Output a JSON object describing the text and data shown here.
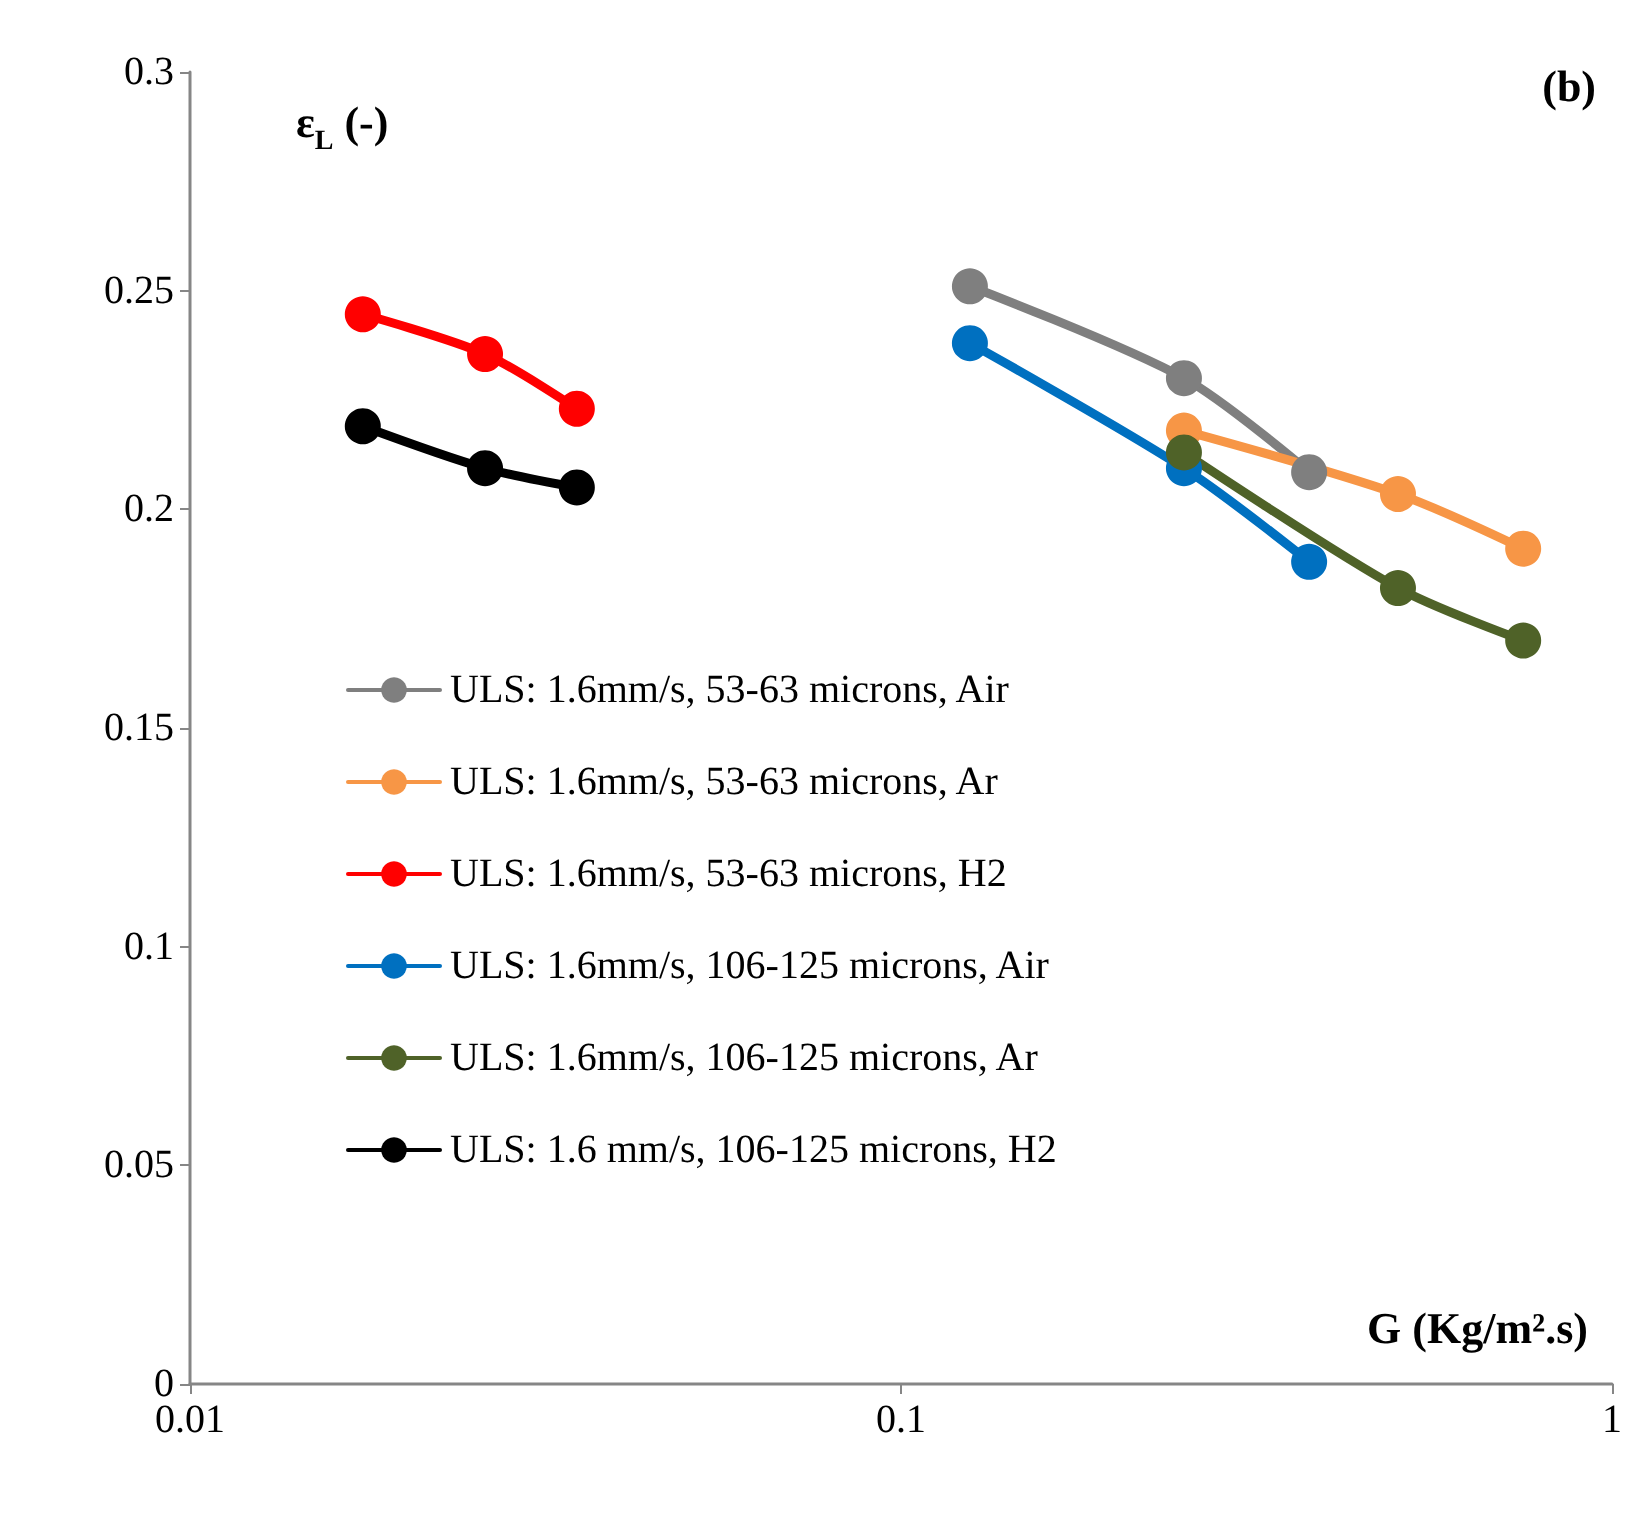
{
  "chart_data": {
    "type": "line",
    "ylabel": "ε$_{L}$ (-)",
    "xlabel": "G (Kg/m².s)",
    "annotations": [
      "(b)"
    ],
    "log": "x",
    "xlim": [
      0.01,
      1
    ],
    "xticks": [
      0.01,
      0.1,
      1
    ],
    "ylim": [
      0,
      0.3
    ],
    "yticks": [
      0,
      0.05,
      0.1,
      0.15,
      0.2,
      0.25,
      0.3
    ],
    "grid": false,
    "legend": "left",
    "marker": "circle",
    "line_style": "solid",
    "series": [
      {
        "name": "ULS: 1.6mm/s, 53-63 microns, Air",
        "color": "#7f7f7f",
        "x": [
          0.125,
          0.25,
          0.375
        ],
        "values": [
          0.251,
          0.23,
          0.2085
        ]
      },
      {
        "name": "ULS: 1.6mm/s, 53-63 microns, Ar",
        "color": "#f79646",
        "x": [
          0.25,
          0.5,
          0.75
        ],
        "values": [
          0.218,
          0.2035,
          0.191
        ]
      },
      {
        "name": "ULS: 1.6mm/s, 53-63 microns, H2",
        "color": "#ff0000",
        "x": [
          0.0175,
          0.026,
          0.035
        ],
        "values": [
          0.2446,
          0.2355,
          0.223
        ]
      },
      {
        "name": "ULS: 1.6mm/s, 106-125 microns, Air",
        "color": "#0070c0",
        "x": [
          0.125,
          0.25,
          0.375
        ],
        "values": [
          0.238,
          0.2094,
          0.188
        ]
      },
      {
        "name": "ULS: 1.6mm/s, 106-125 microns, Ar",
        "color": "#4f6228",
        "x": [
          0.25,
          0.5,
          0.75
        ],
        "values": [
          0.213,
          0.182,
          0.17
        ]
      },
      {
        "name": "ULS: 1.6 mm/s, 106-125 microns, H2",
        "color": "#000000",
        "x": [
          0.0175,
          0.026,
          0.035
        ],
        "values": [
          0.219,
          0.2094,
          0.205
        ]
      }
    ]
  }
}
